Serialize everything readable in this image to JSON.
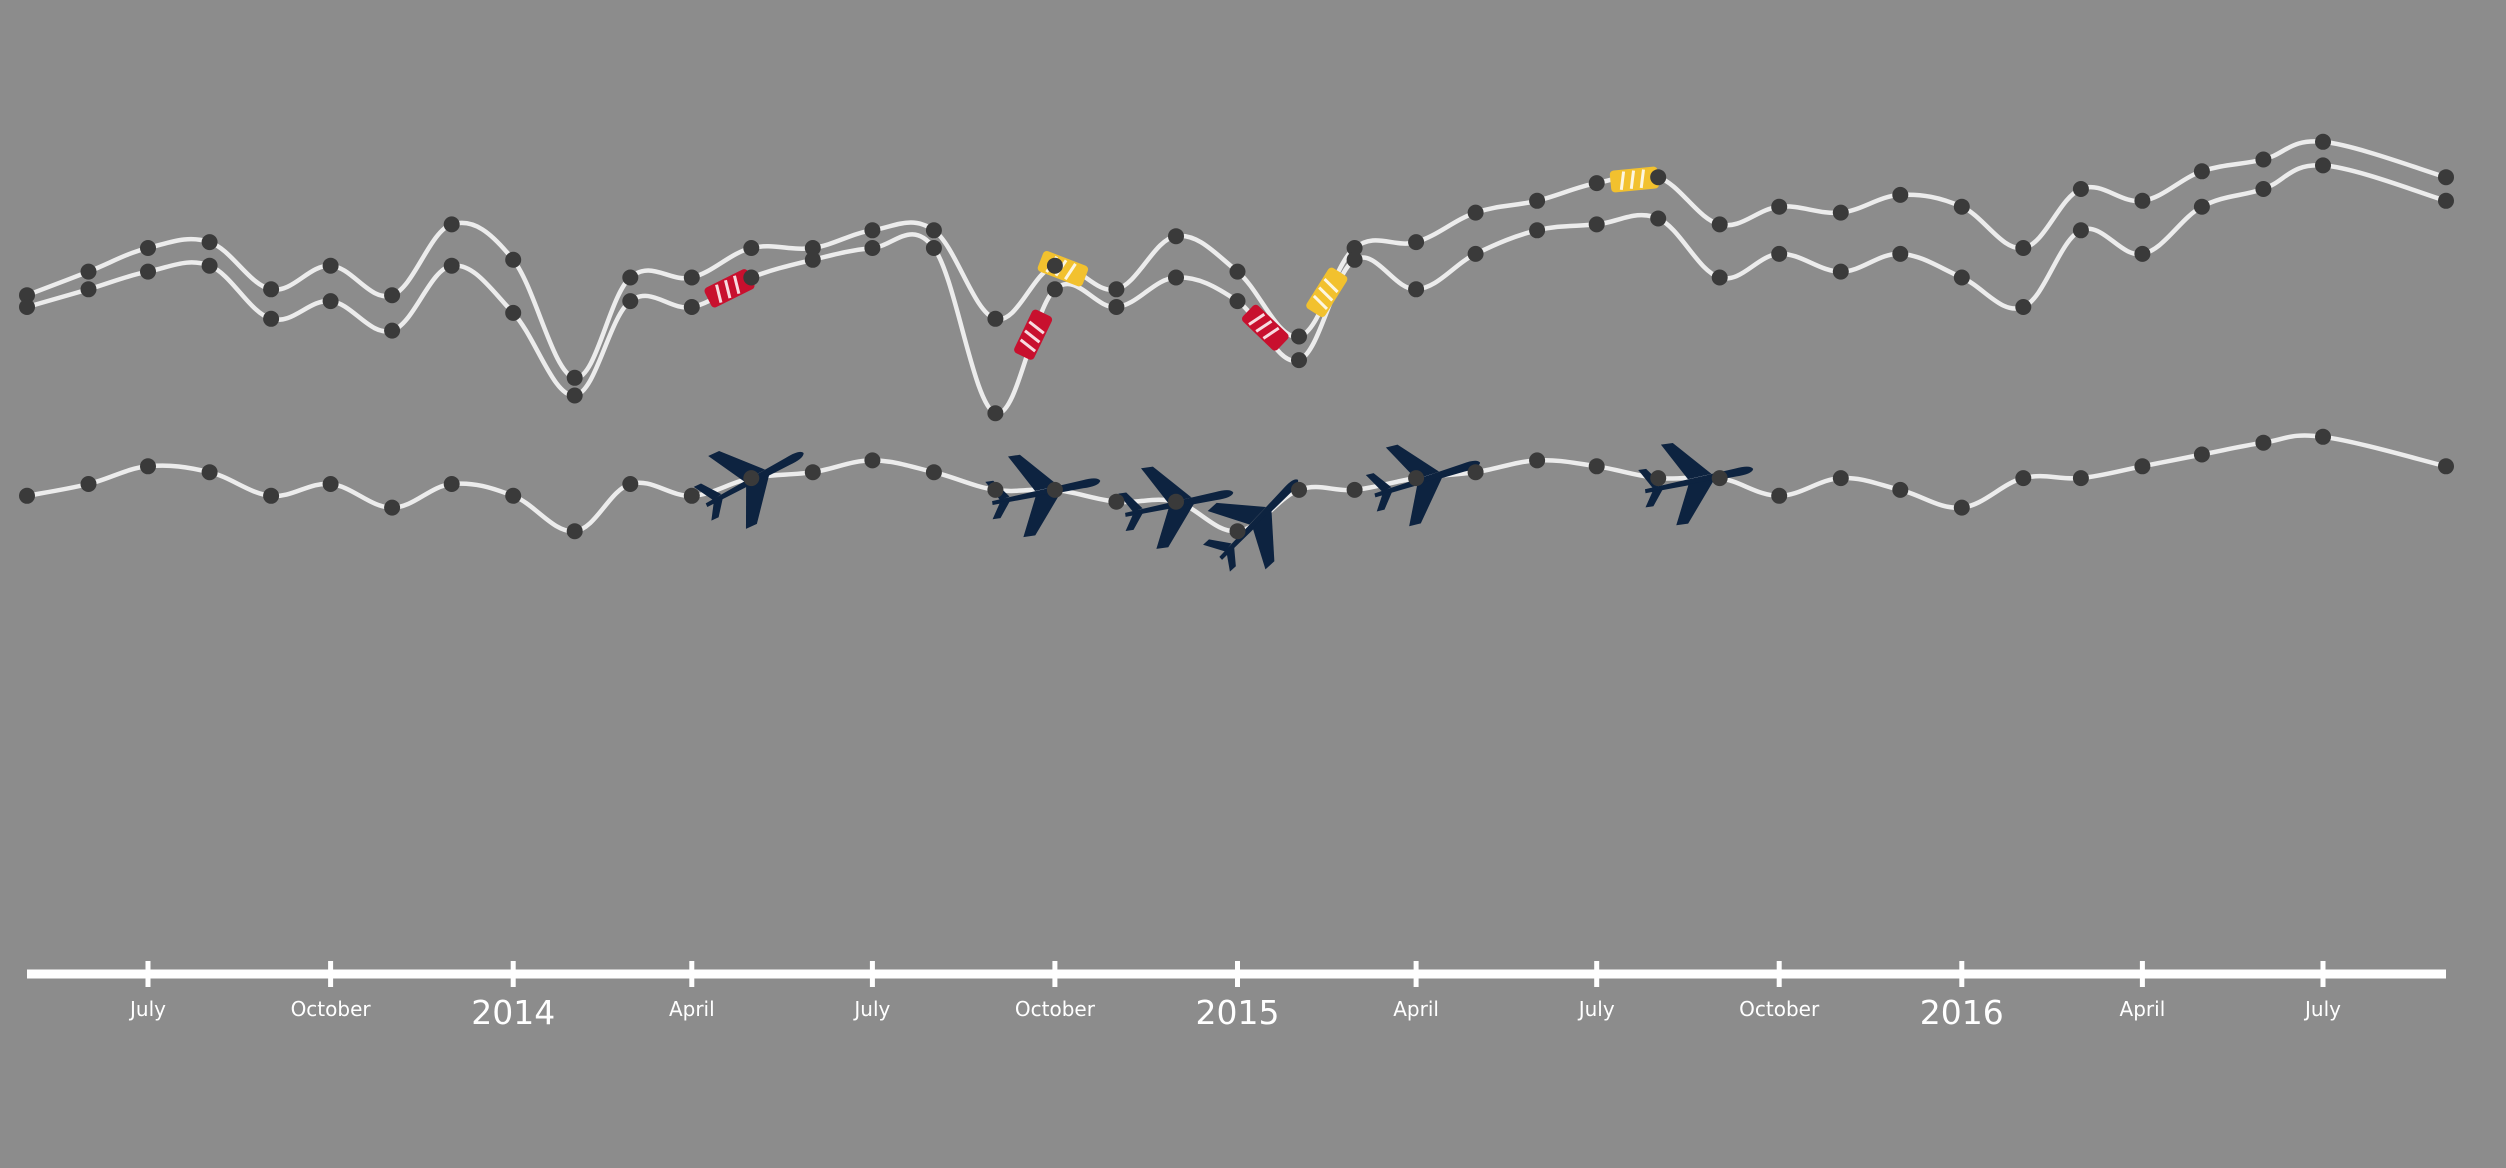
{
  "chart_data": {
    "type": "line",
    "title": "",
    "xlabel": "",
    "ylabel": "",
    "x_axis": {
      "kind": "date",
      "range": [
        "2013-05-01",
        "2016-09-01"
      ],
      "ticks": [
        {
          "date": "2013-07-01",
          "label": "July",
          "major": false
        },
        {
          "date": "2013-10-01",
          "label": "October",
          "major": false
        },
        {
          "date": "2014-01-01",
          "label": "2014",
          "major": true
        },
        {
          "date": "2014-04-01",
          "label": "April",
          "major": false
        },
        {
          "date": "2014-07-01",
          "label": "July",
          "major": false
        },
        {
          "date": "2014-10-01",
          "label": "October",
          "major": false
        },
        {
          "date": "2015-01-01",
          "label": "2015",
          "major": true
        },
        {
          "date": "2015-04-01",
          "label": "April",
          "major": false
        },
        {
          "date": "2015-07-01",
          "label": "July",
          "major": false
        },
        {
          "date": "2015-10-01",
          "label": "October",
          "major": false
        },
        {
          "date": "2016-01-01",
          "label": "2016",
          "major": true
        },
        {
          "date": "2016-04-01",
          "label": "April",
          "major": false
        },
        {
          "date": "2016-07-01",
          "label": "July",
          "major": false
        }
      ]
    },
    "y_axis": {
      "shown": false,
      "range": [
        0,
        100
      ]
    },
    "grid": false,
    "legend": "none",
    "colors": {
      "background": "#8c8c8c",
      "line": "#ececec",
      "point": "#3a3a3a",
      "axis": "#ffffff",
      "marker_red": "#c8102e",
      "marker_yellow": "#f2c12e",
      "marker_plane": "#0d2340"
    },
    "x": [
      "2013-05",
      "2013-06",
      "2013-07",
      "2013-08",
      "2013-09",
      "2013-10",
      "2013-11",
      "2013-12",
      "2014-01",
      "2014-02",
      "2014-03",
      "2014-04",
      "2014-05",
      "2014-06",
      "2014-07",
      "2014-08",
      "2014-09",
      "2014-10",
      "2014-11",
      "2014-12",
      "2015-01",
      "2015-02",
      "2015-03",
      "2015-04",
      "2015-05",
      "2015-06",
      "2015-07",
      "2015-08",
      "2015-09",
      "2015-10",
      "2015-11",
      "2015-12",
      "2016-01",
      "2016-02",
      "2016-03",
      "2016-04",
      "2016-05",
      "2016-06",
      "2016-07",
      "2016-09"
    ],
    "series": [
      {
        "values": [
          72,
          76,
          80,
          81,
          73,
          77,
          72,
          84,
          78,
          58,
          75,
          75,
          80,
          80,
          83,
          83,
          68,
          77,
          73,
          82,
          76,
          65,
          80,
          81,
          86,
          88,
          91,
          92,
          84,
          87,
          86,
          89,
          87,
          80,
          90,
          88,
          93,
          95,
          98,
          92
        ]
      },
      {
        "values": [
          70,
          73,
          76,
          77,
          68,
          71,
          66,
          77,
          69,
          55,
          71,
          70,
          75,
          78,
          80,
          80,
          52,
          73,
          70,
          75,
          71,
          61,
          78,
          73,
          79,
          83,
          84,
          85,
          75,
          79,
          76,
          79,
          75,
          70,
          83,
          79,
          87,
          90,
          94,
          88
        ]
      },
      {
        "values": [
          38,
          40,
          43,
          42,
          38,
          40,
          36,
          40,
          38,
          32,
          40,
          38,
          41,
          42,
          44,
          42,
          39,
          39,
          37,
          37,
          32,
          39,
          39,
          41,
          42,
          44,
          43,
          41,
          41,
          38,
          41,
          39,
          36,
          41,
          41,
          43,
          45,
          47,
          48,
          43
        ]
      }
    ],
    "markers": [
      {
        "type": "red-tag",
        "x": "2014-04-20",
        "series": 1
      },
      {
        "type": "red-tag",
        "x": "2014-09-20",
        "series": 1
      },
      {
        "type": "yellow-tag",
        "x": "2014-10-05",
        "series": 0
      },
      {
        "type": "red-tag",
        "x": "2015-01-15",
        "series": 1
      },
      {
        "type": "yellow-tag",
        "x": "2015-02-15",
        "series": 0
      },
      {
        "type": "yellow-tag",
        "x": "2015-07-20",
        "series": 0
      },
      {
        "type": "plane",
        "x": "2014-05-01",
        "series": 2
      },
      {
        "type": "plane",
        "x": "2014-09-25",
        "series": 2
      },
      {
        "type": "plane",
        "x": "2014-12-01",
        "series": 2
      },
      {
        "type": "plane",
        "x": "2015-01-10",
        "series": 2
      },
      {
        "type": "plane",
        "x": "2015-04-05",
        "series": 2
      },
      {
        "type": "plane",
        "x": "2015-08-20",
        "series": 2
      }
    ]
  }
}
